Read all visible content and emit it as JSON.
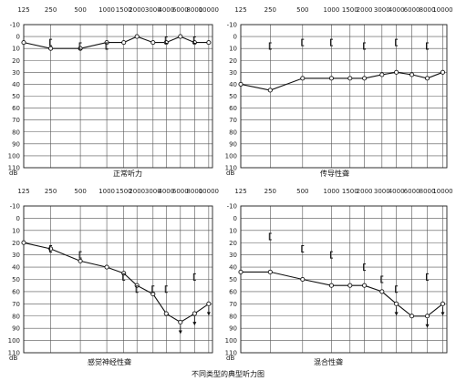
{
  "figure_caption": "不同类型的典型听力图",
  "axis": {
    "unit_label": "dB",
    "x_ticks": [
      "125",
      "250",
      "500",
      "1000",
      "1500",
      "2000",
      "3000",
      "4000",
      "6000",
      "8000",
      "10000"
    ],
    "y_ticks": [
      "-10",
      "0",
      "10",
      "20",
      "30",
      "40",
      "50",
      "60",
      "70",
      "80",
      "90",
      "100",
      "110"
    ],
    "y_range": [
      -10,
      110
    ]
  },
  "chart_data": [
    {
      "type": "line",
      "title": "正常听力",
      "x": [
        "125",
        "250",
        "500",
        "1000",
        "1500",
        "2000",
        "3000",
        "4000",
        "6000",
        "8000",
        "10000"
      ],
      "series": [
        {
          "values": [
            5,
            10,
            10,
            5,
            5,
            0,
            5,
            5,
            0,
            5,
            5
          ]
        }
      ],
      "bone_conduction": [
        {
          "x": "250",
          "y": 5
        },
        {
          "x": "500",
          "y": 8
        },
        {
          "x": "1000",
          "y": 8
        },
        {
          "x": "4000",
          "y": 3
        },
        {
          "x": "8000",
          "y": 3
        }
      ],
      "no_response_at": []
    },
    {
      "type": "line",
      "title": "传导性聋",
      "x": [
        "125",
        "250",
        "500",
        "1000",
        "1500",
        "2000",
        "3000",
        "4000",
        "6000",
        "8000",
        "10000"
      ],
      "series": [
        {
          "values": [
            40,
            45,
            35,
            35,
            35,
            35,
            32,
            30,
            32,
            35,
            30
          ]
        }
      ],
      "bone_conduction": [
        {
          "x": "250",
          "y": 8
        },
        {
          "x": "500",
          "y": 5
        },
        {
          "x": "1000",
          "y": 5
        },
        {
          "x": "2000",
          "y": 8
        },
        {
          "x": "4000",
          "y": 5
        },
        {
          "x": "8000",
          "y": 8
        }
      ],
      "no_response_at": []
    },
    {
      "type": "line",
      "title": "感觉神经性聋",
      "x": [
        "125",
        "250",
        "500",
        "1000",
        "1500",
        "2000",
        "3000",
        "4000",
        "6000",
        "8000",
        "10000"
      ],
      "series": [
        {
          "values": [
            20,
            25,
            35,
            40,
            45,
            55,
            62,
            78,
            85,
            78,
            70
          ]
        }
      ],
      "bone_conduction": [
        {
          "x": "250",
          "y": 25
        },
        {
          "x": "500",
          "y": 30
        },
        {
          "x": "1500",
          "y": 48
        },
        {
          "x": "2000",
          "y": 58
        },
        {
          "x": "3000",
          "y": 58
        },
        {
          "x": "4000",
          "y": 58
        },
        {
          "x": "8000",
          "y": 48
        }
      ],
      "no_response_at": [
        "6000",
        "8000",
        "10000"
      ]
    },
    {
      "type": "line",
      "title": "混合性聋",
      "x": [
        "125",
        "250",
        "500",
        "1000",
        "1500",
        "2000",
        "3000",
        "4000",
        "6000",
        "8000",
        "10000"
      ],
      "series": [
        {
          "values": [
            44,
            44,
            50,
            55,
            55,
            55,
            60,
            70,
            80,
            80,
            70
          ]
        }
      ],
      "bone_conduction": [
        {
          "x": "250",
          "y": 15
        },
        {
          "x": "500",
          "y": 25
        },
        {
          "x": "1000",
          "y": 30
        },
        {
          "x": "2000",
          "y": 40
        },
        {
          "x": "3000",
          "y": 50
        },
        {
          "x": "4000",
          "y": 58
        },
        {
          "x": "8000",
          "y": 48
        }
      ],
      "no_response_at": [
        "4000",
        "8000",
        "10000"
      ]
    }
  ]
}
